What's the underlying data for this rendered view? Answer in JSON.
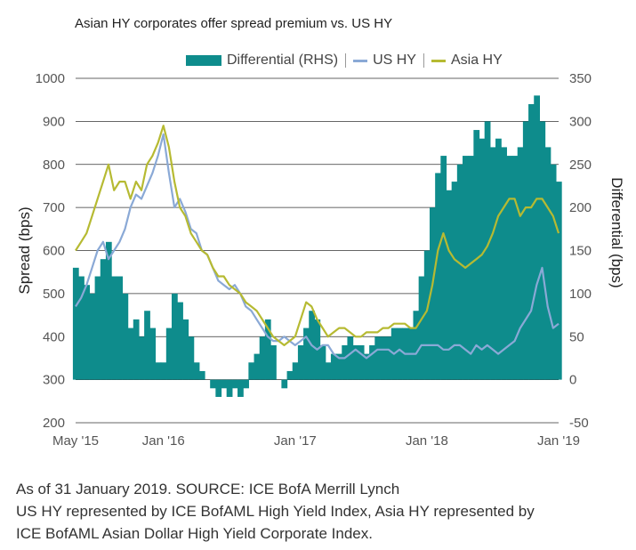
{
  "title": "Asian HY corporates offer spread premium vs. US HY",
  "legend": [
    {
      "label": "Differential (RHS)",
      "color": "#0e8c8c",
      "kind": "area"
    },
    {
      "label": "US HY",
      "color": "#8aa9d6",
      "kind": "line"
    },
    {
      "label": "Asia HY",
      "color": "#b6ba32",
      "kind": "line"
    }
  ],
  "notes": {
    "source": "As of 31 January 2019. SOURCE: ICE BofA Merrill Lynch",
    "desc1": "US HY represented by ICE BofAML High Yield Index, Asia HY represented by",
    "desc2": "ICE BofAML Asian Dollar High Yield Corporate Index."
  },
  "chart_data": {
    "type": "line",
    "title": "Asian HY corporates offer spread premium vs. US HY",
    "ylabel": "Spread (bps)",
    "y2label": "Differential (bps)",
    "ylim": [
      200,
      1000
    ],
    "y2lim": [
      -50,
      350
    ],
    "yticks": [
      200,
      300,
      400,
      500,
      600,
      700,
      800,
      900,
      1000
    ],
    "y2ticks": [
      -50,
      0,
      50,
      100,
      150,
      200,
      250,
      300,
      350
    ],
    "xlim": [
      0,
      44
    ],
    "xticks": [
      {
        "x": 0,
        "label": "May '15"
      },
      {
        "x": 8,
        "label": "Jan '16"
      },
      {
        "x": 20,
        "label": "Jan '17"
      },
      {
        "x": 32,
        "label": "Jan '18"
      },
      {
        "x": 44,
        "label": "Jan '19"
      }
    ],
    "x": [
      0,
      0.5,
      1,
      1.5,
      2,
      2.5,
      3,
      3.5,
      4,
      4.5,
      5,
      5.5,
      6,
      6.5,
      7,
      7.5,
      8,
      8.5,
      9,
      9.5,
      10,
      10.5,
      11,
      11.5,
      12,
      12.5,
      13,
      13.5,
      14,
      14.5,
      15,
      15.5,
      16,
      16.5,
      17,
      17.5,
      18,
      18.5,
      19,
      19.5,
      20,
      20.5,
      21,
      21.5,
      22,
      22.5,
      23,
      23.5,
      24,
      24.5,
      25,
      25.5,
      26,
      26.5,
      27,
      27.5,
      28,
      28.5,
      29,
      29.5,
      30,
      30.5,
      31,
      31.5,
      32,
      32.5,
      33,
      33.5,
      34,
      34.5,
      35,
      35.5,
      36,
      36.5,
      37,
      37.5,
      38,
      38.5,
      39,
      39.5,
      40,
      40.5,
      41,
      41.5,
      42,
      42.5,
      43,
      43.5,
      44
    ],
    "grid": true,
    "legend_position": "top",
    "series": [
      {
        "name": "US HY",
        "axis": "left",
        "color": "#8aa9d6",
        "values": [
          470,
          490,
          520,
          560,
          600,
          620,
          580,
          600,
          620,
          650,
          700,
          730,
          720,
          750,
          780,
          820,
          870,
          780,
          700,
          720,
          690,
          650,
          640,
          600,
          590,
          560,
          530,
          520,
          510,
          520,
          500,
          470,
          460,
          440,
          420,
          400,
          390,
          390,
          400,
          390,
          380,
          390,
          400,
          380,
          370,
          380,
          380,
          360,
          350,
          350,
          360,
          370,
          360,
          350,
          360,
          370,
          370,
          370,
          360,
          370,
          360,
          360,
          360,
          380,
          380,
          380,
          380,
          370,
          370,
          380,
          380,
          370,
          360,
          380,
          370,
          380,
          370,
          360,
          370,
          380,
          390,
          420,
          440,
          460,
          520,
          560,
          470,
          420,
          430
        ]
      },
      {
        "name": "Asia HY",
        "axis": "left",
        "color": "#b6ba32",
        "values": [
          600,
          620,
          640,
          680,
          720,
          760,
          800,
          740,
          760,
          760,
          720,
          760,
          740,
          800,
          820,
          850,
          890,
          840,
          760,
          700,
          680,
          640,
          620,
          600,
          590,
          560,
          540,
          540,
          520,
          510,
          500,
          480,
          470,
          460,
          440,
          420,
          400,
          390,
          380,
          390,
          400,
          440,
          480,
          470,
          440,
          420,
          400,
          410,
          420,
          420,
          410,
          400,
          400,
          410,
          410,
          410,
          420,
          420,
          430,
          430,
          430,
          420,
          420,
          440,
          460,
          520,
          600,
          640,
          600,
          580,
          570,
          560,
          570,
          580,
          590,
          610,
          640,
          680,
          700,
          720,
          720,
          680,
          700,
          700,
          720,
          720,
          700,
          680,
          640
        ]
      },
      {
        "name": "Differential (RHS)",
        "axis": "right",
        "color": "#0e8c8c",
        "values": [
          130,
          120,
          110,
          100,
          120,
          140,
          160,
          120,
          120,
          100,
          60,
          70,
          50,
          80,
          60,
          20,
          20,
          60,
          100,
          90,
          70,
          50,
          20,
          10,
          0,
          -10,
          -20,
          -10,
          -20,
          -10,
          -20,
          -10,
          20,
          30,
          50,
          70,
          40,
          0,
          -10,
          10,
          20,
          40,
          60,
          80,
          70,
          40,
          20,
          30,
          30,
          40,
          50,
          40,
          40,
          30,
          40,
          50,
          50,
          50,
          60,
          60,
          60,
          60,
          80,
          120,
          150,
          200,
          240,
          260,
          220,
          230,
          250,
          260,
          260,
          290,
          280,
          300,
          270,
          280,
          270,
          260,
          260,
          270,
          300,
          320,
          330,
          300,
          270,
          250,
          230
        ]
      }
    ]
  }
}
